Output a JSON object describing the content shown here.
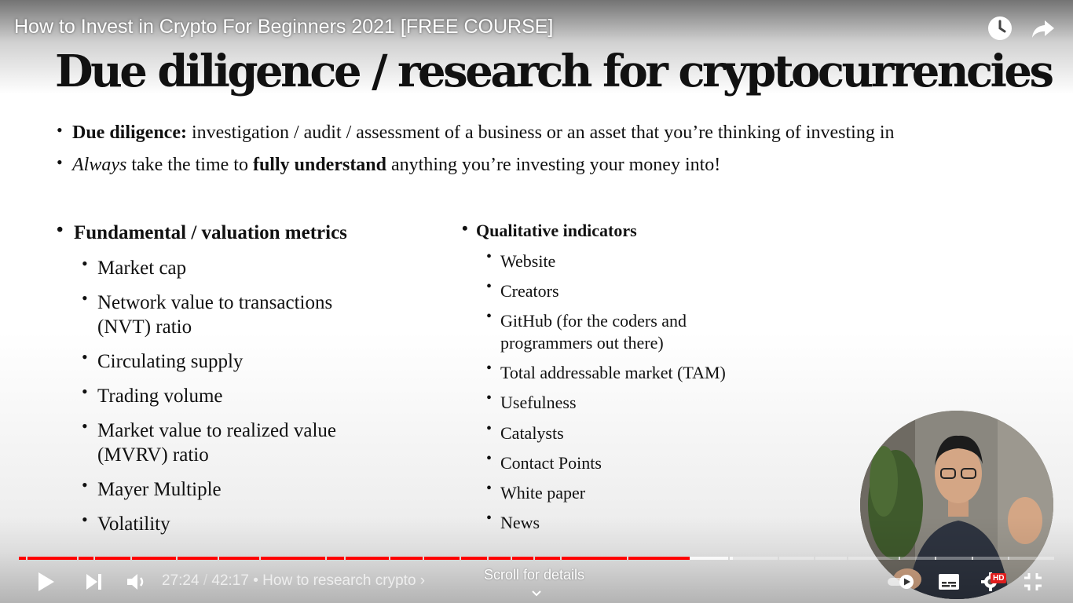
{
  "video": {
    "title": "How to Invest in Crypto For Beginners 2021 [FREE COURSE]",
    "watch_later_icon": "clock-icon",
    "share_icon": "share-arrow-icon"
  },
  "slide": {
    "heading": "Due diligence / research for cryptocurrencies",
    "intro": [
      {
        "bold": "Due diligence:",
        "italic": "",
        "text": " investigation / audit / assessment of a business or an asset that you’re thinking of investing in"
      },
      {
        "italic": "Always",
        "t1": " take the time to ",
        "bold": "fully understand",
        "t2": " anything you’re investing your money into!"
      }
    ],
    "left_heading": "Fundamental / valuation metrics",
    "left_items": [
      "Market cap",
      "Network value to transactions (NVT) ratio",
      "Circulating supply",
      "Trading volume",
      "Market value to realized value (MVRV) ratio",
      "Mayer Multiple",
      "Volatility"
    ],
    "right_heading": "Qualitative indicators",
    "right_items": [
      "Website",
      "Creators",
      "GitHub (for the coders and programmers out there)",
      "Total addressable market (TAM)",
      "Usefulness",
      "Catalysts",
      "Contact Points",
      "White paper",
      "News"
    ]
  },
  "player": {
    "current_time": "27:24",
    "separator": "/",
    "duration": "42:17",
    "chapter_prefix": "•",
    "chapter": "How to research crypto",
    "chapter_chevron": "›",
    "scroll_hint": "Scroll for details",
    "hd_badge": "HD",
    "progress_fraction": 0.648,
    "buffer_fraction": 0.69,
    "icons": {
      "play": "play-icon",
      "next": "next-icon",
      "volume": "volume-icon",
      "autoplay": "autoplay-toggle-icon",
      "captions": "captions-icon",
      "settings": "settings-gear-icon",
      "exit_fullscreen": "exit-fullscreen-icon",
      "scroll": "chevron-down-icon"
    },
    "colors": {
      "progress": "#ff0000",
      "hd": "#e01e1e"
    }
  }
}
